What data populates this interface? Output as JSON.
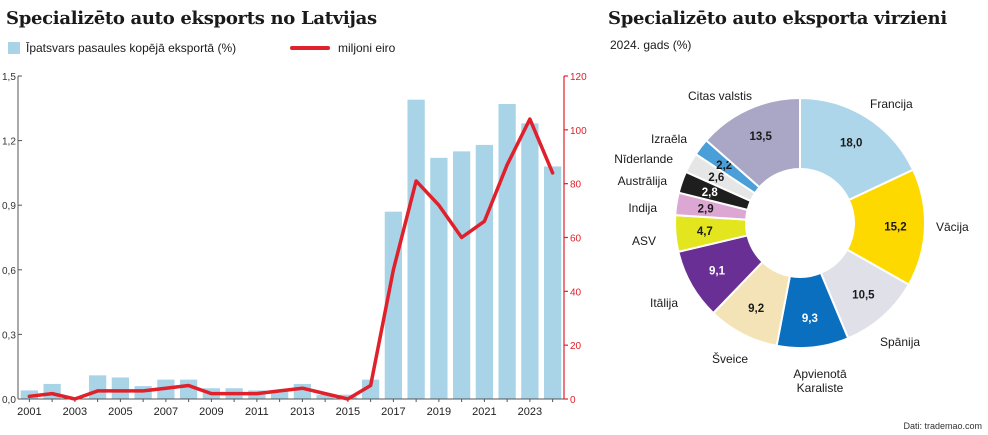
{
  "left": {
    "title": "Specializēto auto eksports no Latvijas",
    "legend_bar": "Īpatsvars pasaules kopējā eksportā (%)",
    "legend_line": "miljoni eiro"
  },
  "right": {
    "title": "Specializēto auto  eksporta virzieni",
    "subtitle": "2024. gads (%)"
  },
  "source": "Dati: trademao.com",
  "chart_data": [
    {
      "type": "bar",
      "title": "Specializēto auto eksports no Latvijas",
      "categories": [
        "2001",
        "2002",
        "2003",
        "2004",
        "2005",
        "2006",
        "2007",
        "2008",
        "2009",
        "2010",
        "2011",
        "2012",
        "2013",
        "2014",
        "2015",
        "2016",
        "2017",
        "2018",
        "2019",
        "2020",
        "2021",
        "2022",
        "2023",
        "2024"
      ],
      "x_tick_labels": [
        "2001",
        "2003",
        "2005",
        "2007",
        "2009",
        "2011",
        "2013",
        "2015",
        "2017",
        "2019",
        "2021",
        "2023"
      ],
      "series": [
        {
          "name": "Īpatsvars pasaules kopējā eksportā (%)",
          "type": "bar",
          "axis": "left",
          "values": [
            0.04,
            0.07,
            0.0,
            0.11,
            0.1,
            0.06,
            0.09,
            0.09,
            0.05,
            0.05,
            0.04,
            0.04,
            0.07,
            0.02,
            0.02,
            0.09,
            0.87,
            1.39,
            1.12,
            1.15,
            1.18,
            1.37,
            1.28,
            1.08
          ]
        },
        {
          "name": "miljoni eiro",
          "type": "line",
          "axis": "right",
          "color": "#e0202a",
          "values": [
            1,
            2,
            0,
            3,
            3,
            3,
            4,
            5,
            2,
            2,
            2,
            3,
            4,
            2,
            0,
            5,
            48,
            81,
            72,
            60,
            66,
            87,
            104,
            84
          ]
        }
      ],
      "y_left": {
        "ylim": [
          0,
          1.5
        ],
        "ticks": [
          "0,0",
          "0,3",
          "0,6",
          "0,9",
          "1,2",
          "1,5"
        ]
      },
      "y_right": {
        "ylim": [
          0,
          120
        ],
        "ticks": [
          "0",
          "20",
          "40",
          "60",
          "80",
          "100",
          "120"
        ],
        "color": "#e0202a"
      },
      "bar_color": "#a9d4e8"
    },
    {
      "type": "pie",
      "title": "Specializēto auto  eksporta virzieni",
      "subtitle": "2024. gads (%)",
      "donut": true,
      "slices": [
        {
          "label": "Francija",
          "value": 18.0,
          "display": "18,0",
          "color": "#aed6ea",
          "text_color": "#1a1a1a"
        },
        {
          "label": "Vācija",
          "value": 15.2,
          "display": "15,2",
          "color": "#fdd900",
          "text_color": "#1a1a1a"
        },
        {
          "label": "Spānija",
          "value": 10.5,
          "display": "10,5",
          "color": "#dfe0e8",
          "text_color": "#1a1a1a"
        },
        {
          "label": "Apvienotā Karaliste",
          "value": 9.3,
          "display": "9,3",
          "color": "#0a6fbe",
          "text_color": "#ffffff"
        },
        {
          "label": "Šveice",
          "value": 9.2,
          "display": "9,2",
          "color": "#f3e3b6",
          "text_color": "#1a1a1a"
        },
        {
          "label": "Itālija",
          "value": 9.1,
          "display": "9,1",
          "color": "#6a2f94",
          "text_color": "#ffffff"
        },
        {
          "label": "ASV",
          "value": 4.7,
          "display": "4,7",
          "color": "#e3e61f",
          "text_color": "#1a1a1a"
        },
        {
          "label": "Indija",
          "value": 2.9,
          "display": "2,9",
          "color": "#dca7d3",
          "text_color": "#1a1a1a"
        },
        {
          "label": "Austrālija",
          "value": 2.8,
          "display": "2,8",
          "color": "#1e1e1e",
          "text_color": "#ffffff"
        },
        {
          "label": "Nīderlande",
          "value": 2.6,
          "display": "2,6",
          "color": "#e6e6e6",
          "text_color": "#1a1a1a"
        },
        {
          "label": "Izraēla",
          "value": 2.2,
          "display": "2,2",
          "color": "#4a9fd8",
          "text_color": "#1a1a1a"
        },
        {
          "label": "Citas valstis",
          "value": 13.5,
          "display": "13,5",
          "color": "#a9a6c6",
          "text_color": "#1a1a1a"
        }
      ]
    }
  ]
}
